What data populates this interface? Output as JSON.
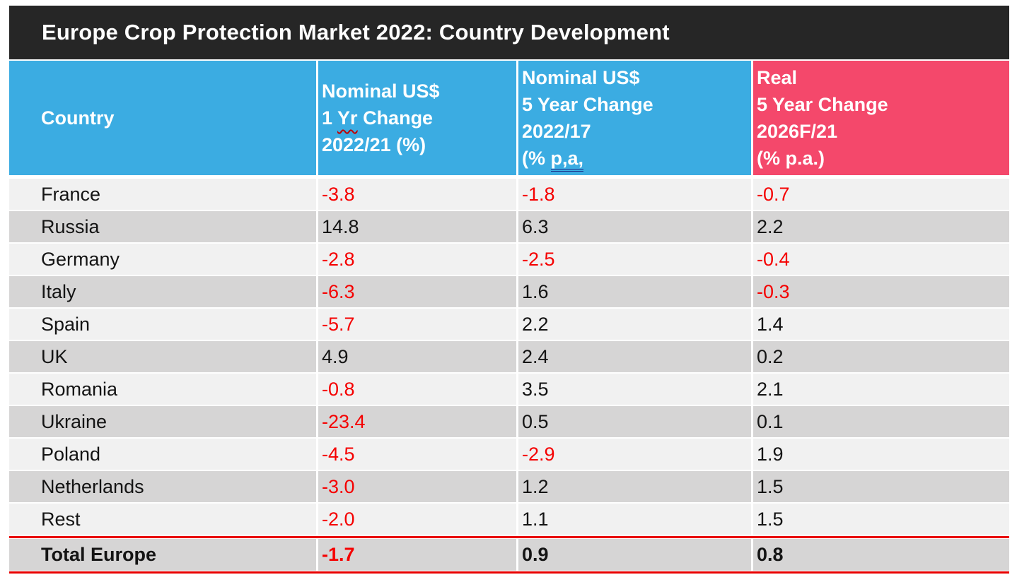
{
  "slide": {
    "title": "Europe Crop Protection Market 2022: Country Development"
  },
  "colors": {
    "title_bar_bg": "#262626",
    "title_text": "#FFFFFF",
    "header_blue": "#3BACE2",
    "header_pink": "#F4486B",
    "header_text": "#FFFFFF",
    "row_light": "#F1F1F1",
    "row_dark": "#D6D5D5",
    "text_dark": "#141414",
    "negative_red": "#F50000",
    "rule_red": "#E80000",
    "spellcheck_wavy_red": "#C00000",
    "grammar_underline_blue": "#1B2F8A"
  },
  "table": {
    "headers": {
      "country": "Country",
      "nominal_1yr": {
        "line1": "Nominal US$",
        "line2_pre": "1 ",
        "line2_marked": "Yr",
        "line2_post": " Change",
        "line3": "2022/21 (%)"
      },
      "nominal_5yr": {
        "line1": "Nominal US$",
        "line2": "5 Year Change",
        "line3": "2022/17",
        "line4_pre": "(% ",
        "line4_marked": "p,a,"
      },
      "real_5yr": {
        "line1": "Real",
        "line2": "5 Year Change",
        "line3": "2026F/21",
        "line4": "(% p.a.)"
      }
    },
    "rows": [
      {
        "country": "France",
        "v1": "-3.8",
        "v2": "-1.8",
        "v3": "-0.7"
      },
      {
        "country": "Russia",
        "v1": "14.8",
        "v2": "6.3",
        "v3": "2.2"
      },
      {
        "country": "Germany",
        "v1": "-2.8",
        "v2": "-2.5",
        "v3": "-0.4"
      },
      {
        "country": "Italy",
        "v1": "-6.3",
        "v2": "1.6",
        "v3": "-0.3"
      },
      {
        "country": "Spain",
        "v1": "-5.7",
        "v2": "2.2",
        "v3": "1.4"
      },
      {
        "country": "UK",
        "v1": "4.9",
        "v2": "2.4",
        "v3": "0.2"
      },
      {
        "country": "Romania",
        "v1": "-0.8",
        "v2": "3.5",
        "v3": "2.1"
      },
      {
        "country": "Ukraine",
        "v1": "-23.4",
        "v2": "0.5",
        "v3": "0.1"
      },
      {
        "country": "Poland",
        "v1": "-4.5",
        "v2": "-2.9",
        "v3": "1.9"
      },
      {
        "country": "Netherlands",
        "v1": "-3.0",
        "v2": "1.2",
        "v3": "1.5"
      },
      {
        "country": "Rest",
        "v1": "-2.0",
        "v2": "1.1",
        "v3": "1.5"
      }
    ],
    "total": {
      "country": "Total Europe",
      "v1": "-1.7",
      "v2": "0.9",
      "v3": "0.8"
    }
  },
  "chart_data": {
    "type": "table",
    "title": "Europe Crop Protection Market 2022: Country Development",
    "columns": [
      "Country",
      "Nominal US$ 1 Yr Change 2022/21 (%)",
      "Nominal US$ 5 Year Change 2022/17 (% p.a.)",
      "Real 5 Year Change 2026F/21 (% p.a.)"
    ],
    "rows": [
      [
        "France",
        -3.8,
        -1.8,
        -0.7
      ],
      [
        "Russia",
        14.8,
        6.3,
        2.2
      ],
      [
        "Germany",
        -2.8,
        -2.5,
        -0.4
      ],
      [
        "Italy",
        -6.3,
        1.6,
        -0.3
      ],
      [
        "Spain",
        -5.7,
        2.2,
        1.4
      ],
      [
        "UK",
        4.9,
        2.4,
        0.2
      ],
      [
        "Romania",
        -0.8,
        3.5,
        2.1
      ],
      [
        "Ukraine",
        -23.4,
        0.5,
        0.1
      ],
      [
        "Poland",
        -4.5,
        -2.9,
        1.9
      ],
      [
        "Netherlands",
        -3.0,
        1.2,
        1.5
      ],
      [
        "Rest",
        -2.0,
        1.1,
        1.5
      ],
      [
        "Total Europe",
        -1.7,
        0.9,
        0.8
      ]
    ]
  }
}
